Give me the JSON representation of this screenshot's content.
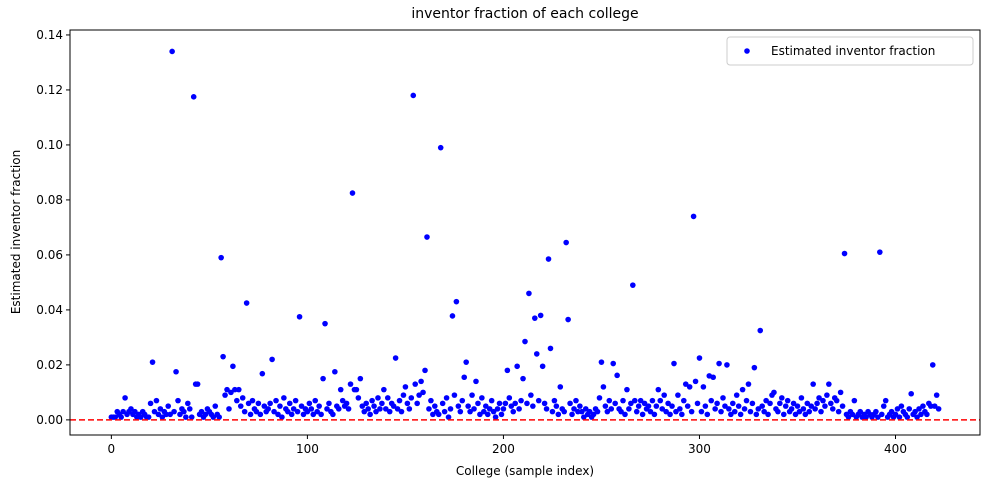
{
  "chart_data": {
    "type": "scatter",
    "title": "inventor fraction of each college",
    "xlabel": "College (sample index)",
    "ylabel": "Estimated inventor fraction",
    "legend": "upper right",
    "grid": false,
    "hline": {
      "y": 0,
      "color": "#ff0000",
      "dashed": true
    },
    "xlim": [
      -21.1,
      443.1
    ],
    "ylim": [
      -0.0055,
      0.1418
    ],
    "xticks": [
      0,
      100,
      200,
      300,
      400
    ],
    "yticks": [
      {
        "value": 0,
        "label": "0.00"
      },
      0.02,
      0.04,
      0.06,
      0.08,
      {
        "value": 0.1,
        "label": "0.10"
      },
      0.12,
      0.14
    ],
    "x": [
      0,
      1,
      2,
      3,
      4,
      5,
      6,
      7,
      8,
      9,
      10,
      11,
      12,
      13,
      14,
      15,
      16,
      17,
      18,
      19,
      20,
      21,
      22,
      23,
      24,
      25,
      26,
      27,
      28,
      29,
      30,
      31,
      32,
      33,
      34,
      35,
      36,
      37,
      38,
      39,
      40,
      41,
      42,
      43,
      44,
      45,
      46,
      47,
      48,
      49,
      50,
      51,
      52,
      53,
      54,
      55,
      56,
      57,
      58,
      59,
      60,
      61,
      62,
      63,
      64,
      65,
      66,
      67,
      68,
      69,
      70,
      71,
      72,
      73,
      74,
      75,
      76,
      77,
      78,
      79,
      80,
      81,
      82,
      83,
      84,
      85,
      86,
      87,
      88,
      89,
      90,
      91,
      92,
      93,
      94,
      95,
      96,
      97,
      98,
      99,
      100,
      101,
      102,
      103,
      104,
      105,
      106,
      107,
      108,
      109,
      110,
      111,
      112,
      113,
      114,
      115,
      116,
      117,
      118,
      119,
      120,
      121,
      122,
      123,
      124,
      125,
      126,
      127,
      128,
      129,
      130,
      131,
      132,
      133,
      134,
      135,
      136,
      137,
      138,
      139,
      140,
      141,
      142,
      143,
      144,
      145,
      146,
      147,
      148,
      149,
      150,
      151,
      152,
      153,
      154,
      155,
      156,
      157,
      158,
      159,
      160,
      161,
      162,
      163,
      164,
      165,
      166,
      167,
      168,
      169,
      170,
      171,
      172,
      173,
      174,
      175,
      176,
      177,
      178,
      179,
      180,
      181,
      182,
      183,
      184,
      185,
      186,
      187,
      188,
      189,
      190,
      191,
      192,
      193,
      194,
      195,
      196,
      197,
      198,
      199,
      200,
      201,
      202,
      203,
      204,
      205,
      206,
      207,
      208,
      209,
      210,
      211,
      212,
      213,
      214,
      215,
      216,
      217,
      218,
      219,
      220,
      221,
      222,
      223,
      224,
      225,
      226,
      227,
      228,
      229,
      230,
      231,
      232,
      233,
      234,
      235,
      236,
      237,
      238,
      239,
      240,
      241,
      242,
      243,
      244,
      245,
      246,
      247,
      248,
      249,
      250,
      251,
      252,
      253,
      254,
      255,
      256,
      257,
      258,
      259,
      260,
      261,
      262,
      263,
      264,
      265,
      266,
      267,
      268,
      269,
      270,
      271,
      272,
      273,
      274,
      275,
      276,
      277,
      278,
      279,
      280,
      281,
      282,
      283,
      284,
      285,
      286,
      287,
      288,
      289,
      290,
      291,
      292,
      293,
      294,
      295,
      296,
      297,
      298,
      299,
      300,
      301,
      302,
      303,
      304,
      305,
      306,
      307,
      308,
      309,
      310,
      311,
      312,
      313,
      314,
      315,
      316,
      317,
      318,
      319,
      320,
      321,
      322,
      323,
      324,
      325,
      326,
      327,
      328,
      329,
      330,
      331,
      332,
      333,
      334,
      335,
      336,
      337,
      338,
      339,
      340,
      341,
      342,
      343,
      344,
      345,
      346,
      347,
      348,
      349,
      350,
      351,
      352,
      353,
      354,
      355,
      356,
      357,
      358,
      359,
      360,
      361,
      362,
      363,
      364,
      365,
      366,
      367,
      368,
      369,
      370,
      371,
      372,
      373,
      374,
      375,
      376,
      377,
      378,
      379,
      380,
      381,
      382,
      383,
      384,
      385,
      386,
      387,
      388,
      389,
      390,
      391,
      392,
      393,
      394,
      395,
      396,
      397,
      398,
      399,
      400,
      401,
      402,
      403,
      404,
      405,
      406,
      407,
      408,
      409,
      410,
      411,
      412,
      413,
      414,
      415,
      416,
      417,
      418,
      419,
      420,
      421,
      422
    ],
    "series": [
      {
        "name": "Estimated inventor fraction",
        "color": "#0000ff",
        "values": [
          0.001,
          0.001,
          0.001,
          0.003,
          0.002,
          0.001,
          0.003,
          0.008,
          0.002,
          0.003,
          0.004,
          0.002,
          0.003,
          0.001,
          0.002,
          0.001,
          0.003,
          0.002,
          0.001,
          0.001,
          0.006,
          0.021,
          0.003,
          0.007,
          0.002,
          0.004,
          0.001,
          0.003,
          0.002,
          0.005,
          0.002,
          0.134,
          0.003,
          0.0175,
          0.007,
          0.002,
          0.004,
          0.003,
          0.001,
          0.006,
          0.004,
          0.001,
          0.1175,
          0.013,
          0.013,
          0.002,
          0.003,
          0.001,
          0.002,
          0.004,
          0.003,
          0.002,
          0.001,
          0.005,
          0.002,
          0.001,
          0.059,
          0.023,
          0.009,
          0.011,
          0.004,
          0.01,
          0.0195,
          0.011,
          0.007,
          0.011,
          0.005,
          0.008,
          0.003,
          0.0425,
          0.006,
          0.002,
          0.007,
          0.004,
          0.003,
          0.006,
          0.002,
          0.0168,
          0.005,
          0.003,
          0.004,
          0.006,
          0.022,
          0.003,
          0.007,
          0.002,
          0.005,
          0.001,
          0.008,
          0.004,
          0.003,
          0.006,
          0.002,
          0.004,
          0.007,
          0.003,
          0.0375,
          0.005,
          0.002,
          0.004,
          0.003,
          0.006,
          0.004,
          0.002,
          0.007,
          0.003,
          0.005,
          0.002,
          0.015,
          0.035,
          0.004,
          0.006,
          0.003,
          0.002,
          0.0175,
          0.005,
          0.004,
          0.011,
          0.007,
          0.005,
          0.006,
          0.004,
          0.013,
          0.0825,
          0.011,
          0.011,
          0.008,
          0.015,
          0.005,
          0.003,
          0.006,
          0.004,
          0.002,
          0.007,
          0.005,
          0.003,
          0.008,
          0.004,
          0.006,
          0.011,
          0.004,
          0.008,
          0.003,
          0.006,
          0.005,
          0.0225,
          0.004,
          0.007,
          0.003,
          0.009,
          0.012,
          0.006,
          0.004,
          0.008,
          0.118,
          0.013,
          0.006,
          0.009,
          0.014,
          0.01,
          0.018,
          0.0665,
          0.004,
          0.007,
          0.002,
          0.005,
          0.003,
          0.002,
          0.099,
          0.006,
          0.003,
          0.008,
          0.001,
          0.004,
          0.0378,
          0.009,
          0.043,
          0.005,
          0.003,
          0.007,
          0.0155,
          0.021,
          0.005,
          0.003,
          0.009,
          0.004,
          0.014,
          0.006,
          0.002,
          0.008,
          0.003,
          0.005,
          0.002,
          0.004,
          0.007,
          0.003,
          0.001,
          0.004,
          0.006,
          0.002,
          0.004,
          0.006,
          0.018,
          0.008,
          0.005,
          0.003,
          0.006,
          0.0195,
          0.004,
          0.007,
          0.015,
          0.0285,
          0.006,
          0.046,
          0.009,
          0.005,
          0.037,
          0.024,
          0.007,
          0.038,
          0.0195,
          0.006,
          0.004,
          0.0585,
          0.026,
          0.003,
          0.007,
          0.005,
          0.002,
          0.012,
          0.004,
          0.003,
          0.0645,
          0.0365,
          0.006,
          0.002,
          0.004,
          0.007,
          0.003,
          0.005,
          0.003,
          0.001,
          0.004,
          0.002,
          0.003,
          0.001,
          0.002,
          0.004,
          0.003,
          0.008,
          0.021,
          0.012,
          0.005,
          0.003,
          0.007,
          0.004,
          0.0205,
          0.006,
          0.0162,
          0.004,
          0.003,
          0.007,
          0.002,
          0.011,
          0.004,
          0.006,
          0.049,
          0.007,
          0.003,
          0.005,
          0.007,
          0.002,
          0.006,
          0.004,
          0.005,
          0.003,
          0.007,
          0.002,
          0.005,
          0.011,
          0.007,
          0.004,
          0.009,
          0.003,
          0.006,
          0.002,
          0.005,
          0.0205,
          0.003,
          0.009,
          0.004,
          0.002,
          0.007,
          0.013,
          0.005,
          0.012,
          0.003,
          0.074,
          0.014,
          0.006,
          0.0225,
          0.003,
          0.012,
          0.005,
          0.002,
          0.016,
          0.007,
          0.0155,
          0.004,
          0.006,
          0.0205,
          0.003,
          0.008,
          0.005,
          0.02,
          0.004,
          0.002,
          0.006,
          0.003,
          0.009,
          0.005,
          0.002,
          0.011,
          0.004,
          0.007,
          0.013,
          0.003,
          0.006,
          0.019,
          0.002,
          0.004,
          0.0325,
          0.005,
          0.003,
          0.007,
          0.002,
          0.006,
          0.009,
          0.01,
          0.004,
          0.003,
          0.006,
          0.008,
          0.002,
          0.005,
          0.007,
          0.003,
          0.004,
          0.006,
          0.002,
          0.005,
          0.003,
          0.008,
          0.004,
          0.002,
          0.006,
          0.003,
          0.005,
          0.013,
          0.004,
          0.006,
          0.008,
          0.003,
          0.007,
          0.005,
          0.009,
          0.013,
          0.006,
          0.004,
          0.008,
          0.007,
          0.003,
          0.01,
          0.005,
          0.0605,
          0.002,
          0.001,
          0.003,
          0.002,
          0.007,
          0.001,
          0.002,
          0.003,
          0.001,
          0.002,
          0.001,
          0.003,
          0.002,
          0.001,
          0.002,
          0.003,
          0.001,
          0.061,
          0.002,
          0.005,
          0.007,
          0.001,
          0.002,
          0.003,
          0.001,
          0.002,
          0.004,
          0.001,
          0.005,
          0.003,
          0.002,
          0.001,
          0.004,
          0.0095,
          0.002,
          0.003,
          0.001,
          0.004,
          0.002,
          0.005,
          0.003,
          0.002,
          0.006,
          0.005,
          0.02,
          0.005,
          0.009,
          0.004
        ]
      }
    ]
  }
}
